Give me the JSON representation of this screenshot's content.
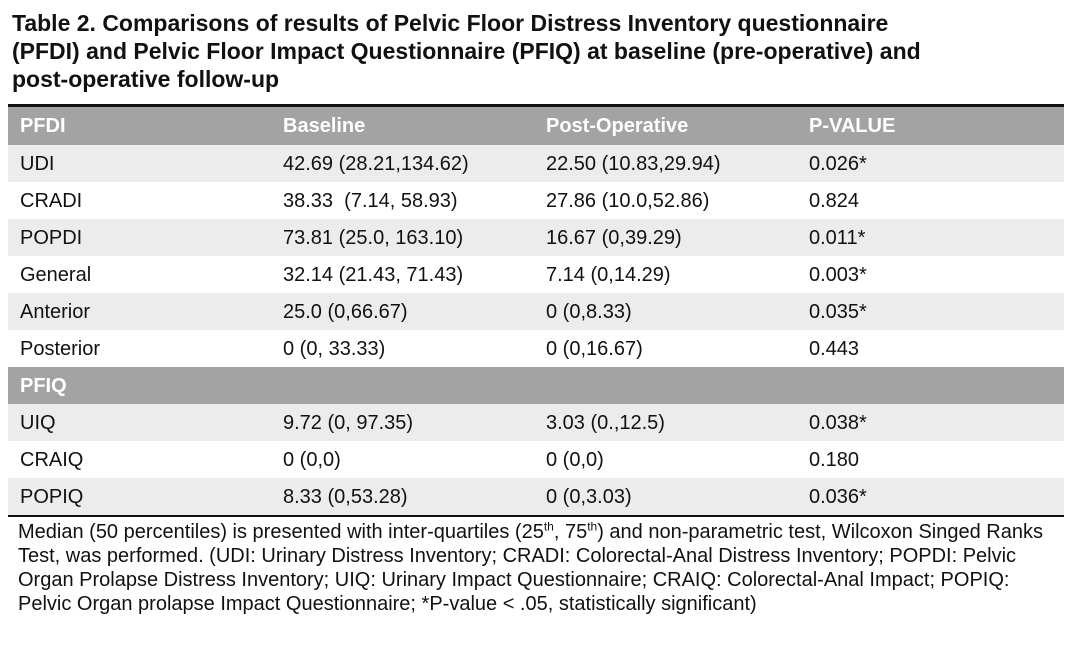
{
  "title": {
    "line1": "Table 2.  Comparisons of results of Pelvic Floor Distress Inventory questionnaire",
    "line2": "(PFDI) and Pelvic Floor Impact Questionnaire (PFIQ) at baseline (pre-operative) and",
    "line3": "post-operative follow-up"
  },
  "table": {
    "header": [
      "PFDI",
      "Baseline",
      "Post-Operative",
      "P-VALUE"
    ],
    "pfdi_rows": [
      [
        "UDI",
        "42.69 (28.21,134.62)",
        "22.50 (10.83,29.94)",
        "0.026*"
      ],
      [
        "CRADI",
        "38.33  (7.14, 58.93)",
        "27.86 (10.0,52.86)",
        "0.824"
      ],
      [
        "POPDI",
        "73.81 (25.0, 163.10)",
        "16.67 (0,39.29)",
        "0.011*"
      ],
      [
        "General",
        "32.14 (21.43, 71.43)",
        "7.14 (0,14.29)",
        "0.003*"
      ],
      [
        "Anterior",
        "25.0 (0,66.67)",
        "0 (0,8.33)",
        "0.035*"
      ],
      [
        "Posterior",
        "0 (0, 33.33)",
        "0 (0,16.67)",
        "0.443"
      ]
    ],
    "section2_label": "PFIQ",
    "pfiq_rows": [
      [
        "UIQ",
        "9.72 (0, 97.35)",
        "3.03 (0.,12.5)",
        "0.038*"
      ],
      [
        "CRAIQ",
        "0 (0,0)",
        "0 (0,0)",
        "0.180"
      ],
      [
        "POPIQ",
        "8.33 (0,53.28)",
        "0 (0,3.03)",
        "0.036*"
      ]
    ]
  },
  "footnote": {
    "part1": "Median (50 percentiles) is presented with inter-quartiles (25",
    "sup1": "th",
    "part2": ", 75",
    "sup2": "th",
    "part3": ")  and non-parametric test, Wilcoxon Singed Ranks Test, was performed.  (UDI: Urinary Distress Inventory; CRADI: Colorectal-Anal Distress Inventory; POPDI: Pelvic Organ Prolapse Distress Inventory; UIQ: Urinary Impact Questionnaire; CRAIQ: Colorectal-Anal Impact; POPIQ: Pelvic Organ prolapse Impact Questionnaire; *P-value < .05, statistically significant)"
  },
  "colors": {
    "header_bg": "#a3a3a3",
    "header_text": "#ffffff",
    "alt_row_bg": "#ececec",
    "rule": "#111111"
  }
}
